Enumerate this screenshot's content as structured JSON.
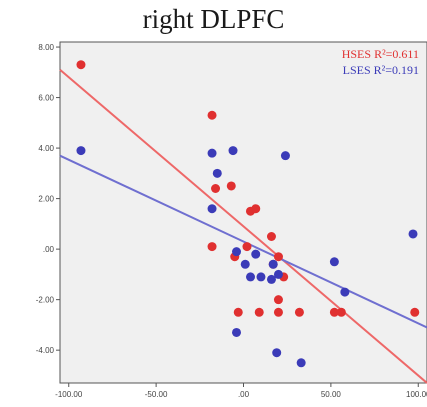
{
  "chart_data": {
    "type": "scatter",
    "title": "right DLPFC",
    "xlabel": "",
    "ylabel": "",
    "xlim": [
      -105,
      105
    ],
    "ylim": [
      -5.3,
      8.2
    ],
    "grid": false,
    "legend_placement": "top-right",
    "x_ticks": [
      -100,
      -50,
      0,
      50,
      100
    ],
    "x_tick_labels": [
      "-100.00",
      "-50.00",
      ".00",
      "50.00",
      "100.00"
    ],
    "y_ticks": [
      -4,
      -2,
      0,
      2,
      4,
      6,
      8
    ],
    "y_tick_labels": [
      "-4.00",
      "-2.00",
      ".00",
      "2.00",
      "4.00",
      "6.00",
      "8.00"
    ],
    "series": [
      {
        "name": "HSES R²=0.611",
        "color": "#e03030",
        "line_color": "#ee6868",
        "fit": {
          "x_start": -105,
          "y_start": 7.1,
          "x_end": 105,
          "y_end": -5.3
        },
        "points": [
          {
            "x": -93,
            "y": 7.3
          },
          {
            "x": -18,
            "y": 5.3
          },
          {
            "x": -16,
            "y": 2.4
          },
          {
            "x": -7,
            "y": 2.5
          },
          {
            "x": 4,
            "y": 1.5
          },
          {
            "x": 7,
            "y": 1.6
          },
          {
            "x": -18,
            "y": 0.1
          },
          {
            "x": 2,
            "y": 0.1
          },
          {
            "x": -5,
            "y": -0.3
          },
          {
            "x": 16,
            "y": 0.5
          },
          {
            "x": 20,
            "y": -0.3
          },
          {
            "x": 17,
            "y": -0.6
          },
          {
            "x": 23,
            "y": -1.1
          },
          {
            "x": 20,
            "y": -2.0
          },
          {
            "x": -3,
            "y": -2.5
          },
          {
            "x": 9,
            "y": -2.5
          },
          {
            "x": 20,
            "y": -2.5
          },
          {
            "x": 32,
            "y": -2.5
          },
          {
            "x": 52,
            "y": -2.5
          },
          {
            "x": 56,
            "y": -2.5
          },
          {
            "x": 98,
            "y": -2.5
          }
        ]
      },
      {
        "name": "LSES R²=0.191",
        "color": "#3b3bb8",
        "line_color": "#6f6fd0",
        "fit": {
          "x_start": -105,
          "y_start": 3.7,
          "x_end": 105,
          "y_end": -3.1
        },
        "points": [
          {
            "x": -93,
            "y": 3.9
          },
          {
            "x": -18,
            "y": 3.8
          },
          {
            "x": -6,
            "y": 3.9
          },
          {
            "x": 24,
            "y": 3.7
          },
          {
            "x": -15,
            "y": 3.0
          },
          {
            "x": -18,
            "y": 1.6
          },
          {
            "x": -4,
            "y": -0.1
          },
          {
            "x": 7,
            "y": -0.2
          },
          {
            "x": 1,
            "y": -0.6
          },
          {
            "x": 17,
            "y": -0.6
          },
          {
            "x": 4,
            "y": -1.1
          },
          {
            "x": 10,
            "y": -1.1
          },
          {
            "x": 16,
            "y": -1.2
          },
          {
            "x": 20,
            "y": -1.0
          },
          {
            "x": 52,
            "y": -0.5
          },
          {
            "x": 58,
            "y": -1.7
          },
          {
            "x": 97,
            "y": 0.6
          },
          {
            "x": -4,
            "y": -3.3
          },
          {
            "x": 19,
            "y": -4.1
          },
          {
            "x": 33,
            "y": -4.5
          }
        ]
      }
    ]
  }
}
